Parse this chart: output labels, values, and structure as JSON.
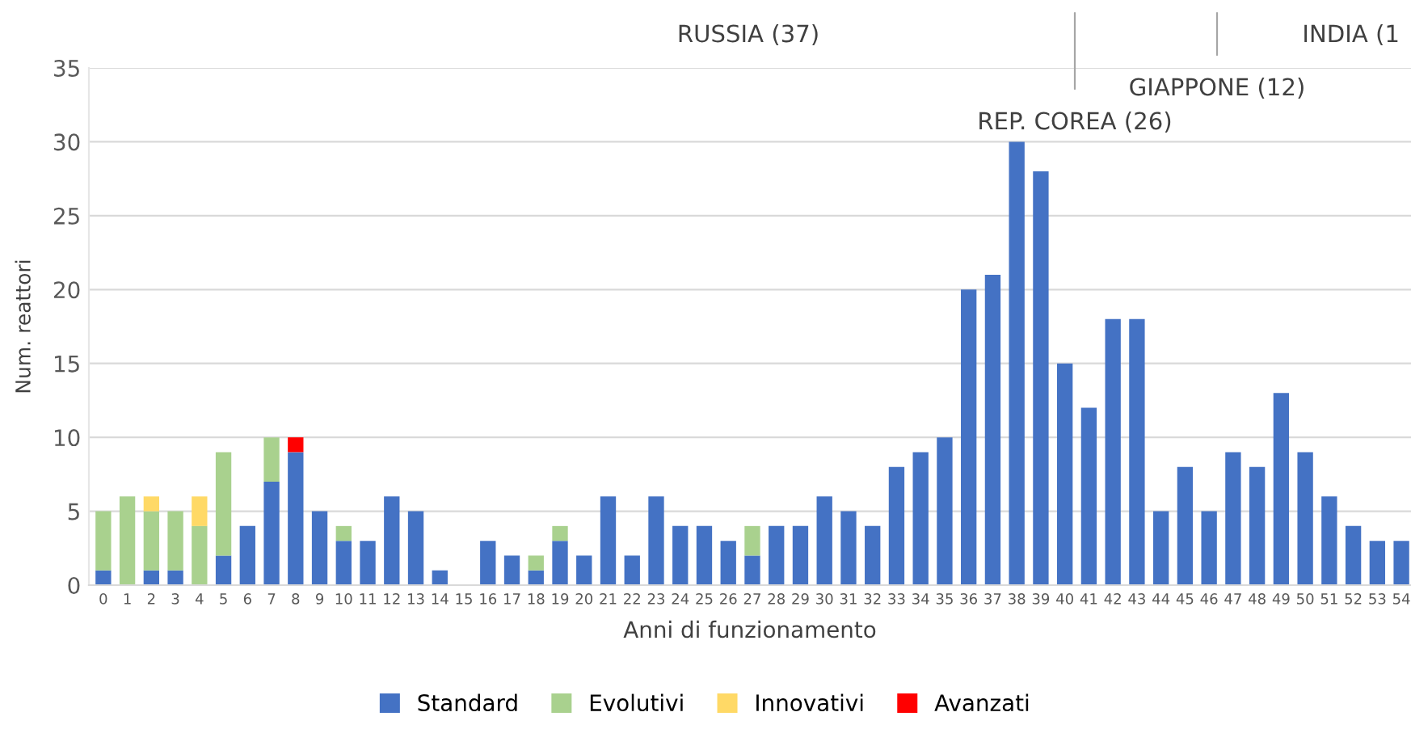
{
  "chart_data": {
    "type": "bar",
    "stacked": true,
    "ylabel": "Num. reattori",
    "xlabel": "Anni di funzionamento",
    "categories": [
      "0",
      "1",
      "2",
      "3",
      "4",
      "5",
      "6",
      "7",
      "8",
      "9",
      "10",
      "11",
      "12",
      "13",
      "14",
      "15",
      "16",
      "17",
      "18",
      "19",
      "20",
      "21",
      "22",
      "23",
      "24",
      "25",
      "26",
      "27",
      "28",
      "29",
      "30",
      "31",
      "32",
      "33",
      "34",
      "35",
      "36",
      "37",
      "38",
      "39",
      "40",
      "41",
      "42",
      "43",
      "44",
      "45",
      "46",
      "47",
      "48",
      "49",
      "50",
      "51",
      "52",
      "53",
      "54"
    ],
    "series": [
      {
        "name": "Standard",
        "color": "#4472c4",
        "values": [
          1,
          0,
          1,
          1,
          0,
          2,
          4,
          7,
          9,
          5,
          3,
          3,
          6,
          5,
          1,
          0,
          3,
          2,
          1,
          3,
          2,
          6,
          2,
          6,
          4,
          4,
          3,
          2,
          4,
          4,
          6,
          5,
          4,
          8,
          9,
          10,
          20,
          21,
          30,
          28,
          15,
          12,
          18,
          18,
          5,
          8,
          5,
          9,
          8,
          13,
          9,
          6,
          4,
          3,
          3
        ]
      },
      {
        "name": "Evolutivi",
        "color": "#a9d18e",
        "values": [
          4,
          6,
          4,
          4,
          4,
          7,
          0,
          3,
          0,
          0,
          1,
          0,
          0,
          0,
          0,
          0,
          0,
          0,
          1,
          1,
          0,
          0,
          0,
          0,
          0,
          0,
          0,
          2,
          0,
          0,
          0,
          0,
          0,
          0,
          0,
          0,
          0,
          0,
          0,
          0,
          0,
          0,
          0,
          0,
          0,
          0,
          0,
          0,
          0,
          0,
          0,
          0,
          0,
          0,
          0
        ]
      },
      {
        "name": "Innovativi",
        "color": "#ffd966",
        "values": [
          0,
          0,
          1,
          0,
          2,
          0,
          0,
          0,
          0,
          0,
          0,
          0,
          0,
          0,
          0,
          0,
          0,
          0,
          0,
          0,
          0,
          0,
          0,
          0,
          0,
          0,
          0,
          0,
          0,
          0,
          0,
          0,
          0,
          0,
          0,
          0,
          0,
          0,
          0,
          0,
          0,
          0,
          0,
          0,
          0,
          0,
          0,
          0,
          0,
          0,
          0,
          0,
          0,
          0,
          0
        ]
      },
      {
        "name": "Avanzati",
        "color": "#ff0000",
        "values": [
          0,
          0,
          0,
          0,
          0,
          0,
          0,
          0,
          1,
          0,
          0,
          0,
          0,
          0,
          0,
          0,
          0,
          0,
          0,
          0,
          0,
          0,
          0,
          0,
          0,
          0,
          0,
          0,
          0,
          0,
          0,
          0,
          0,
          0,
          0,
          0,
          0,
          0,
          0,
          0,
          0,
          0,
          0,
          0,
          0,
          0,
          0,
          0,
          0,
          0,
          0,
          0,
          0,
          0,
          0
        ]
      }
    ],
    "ylim": [
      0,
      35
    ],
    "yticks": [
      0,
      5,
      10,
      15,
      20,
      25,
      30,
      35
    ],
    "grid": "y",
    "legend": "bottom",
    "annotations": [
      "RUSSIA (37)",
      "REP. COREA (26)",
      "GIAPPONE (12)",
      "INDIA (1"
    ]
  }
}
